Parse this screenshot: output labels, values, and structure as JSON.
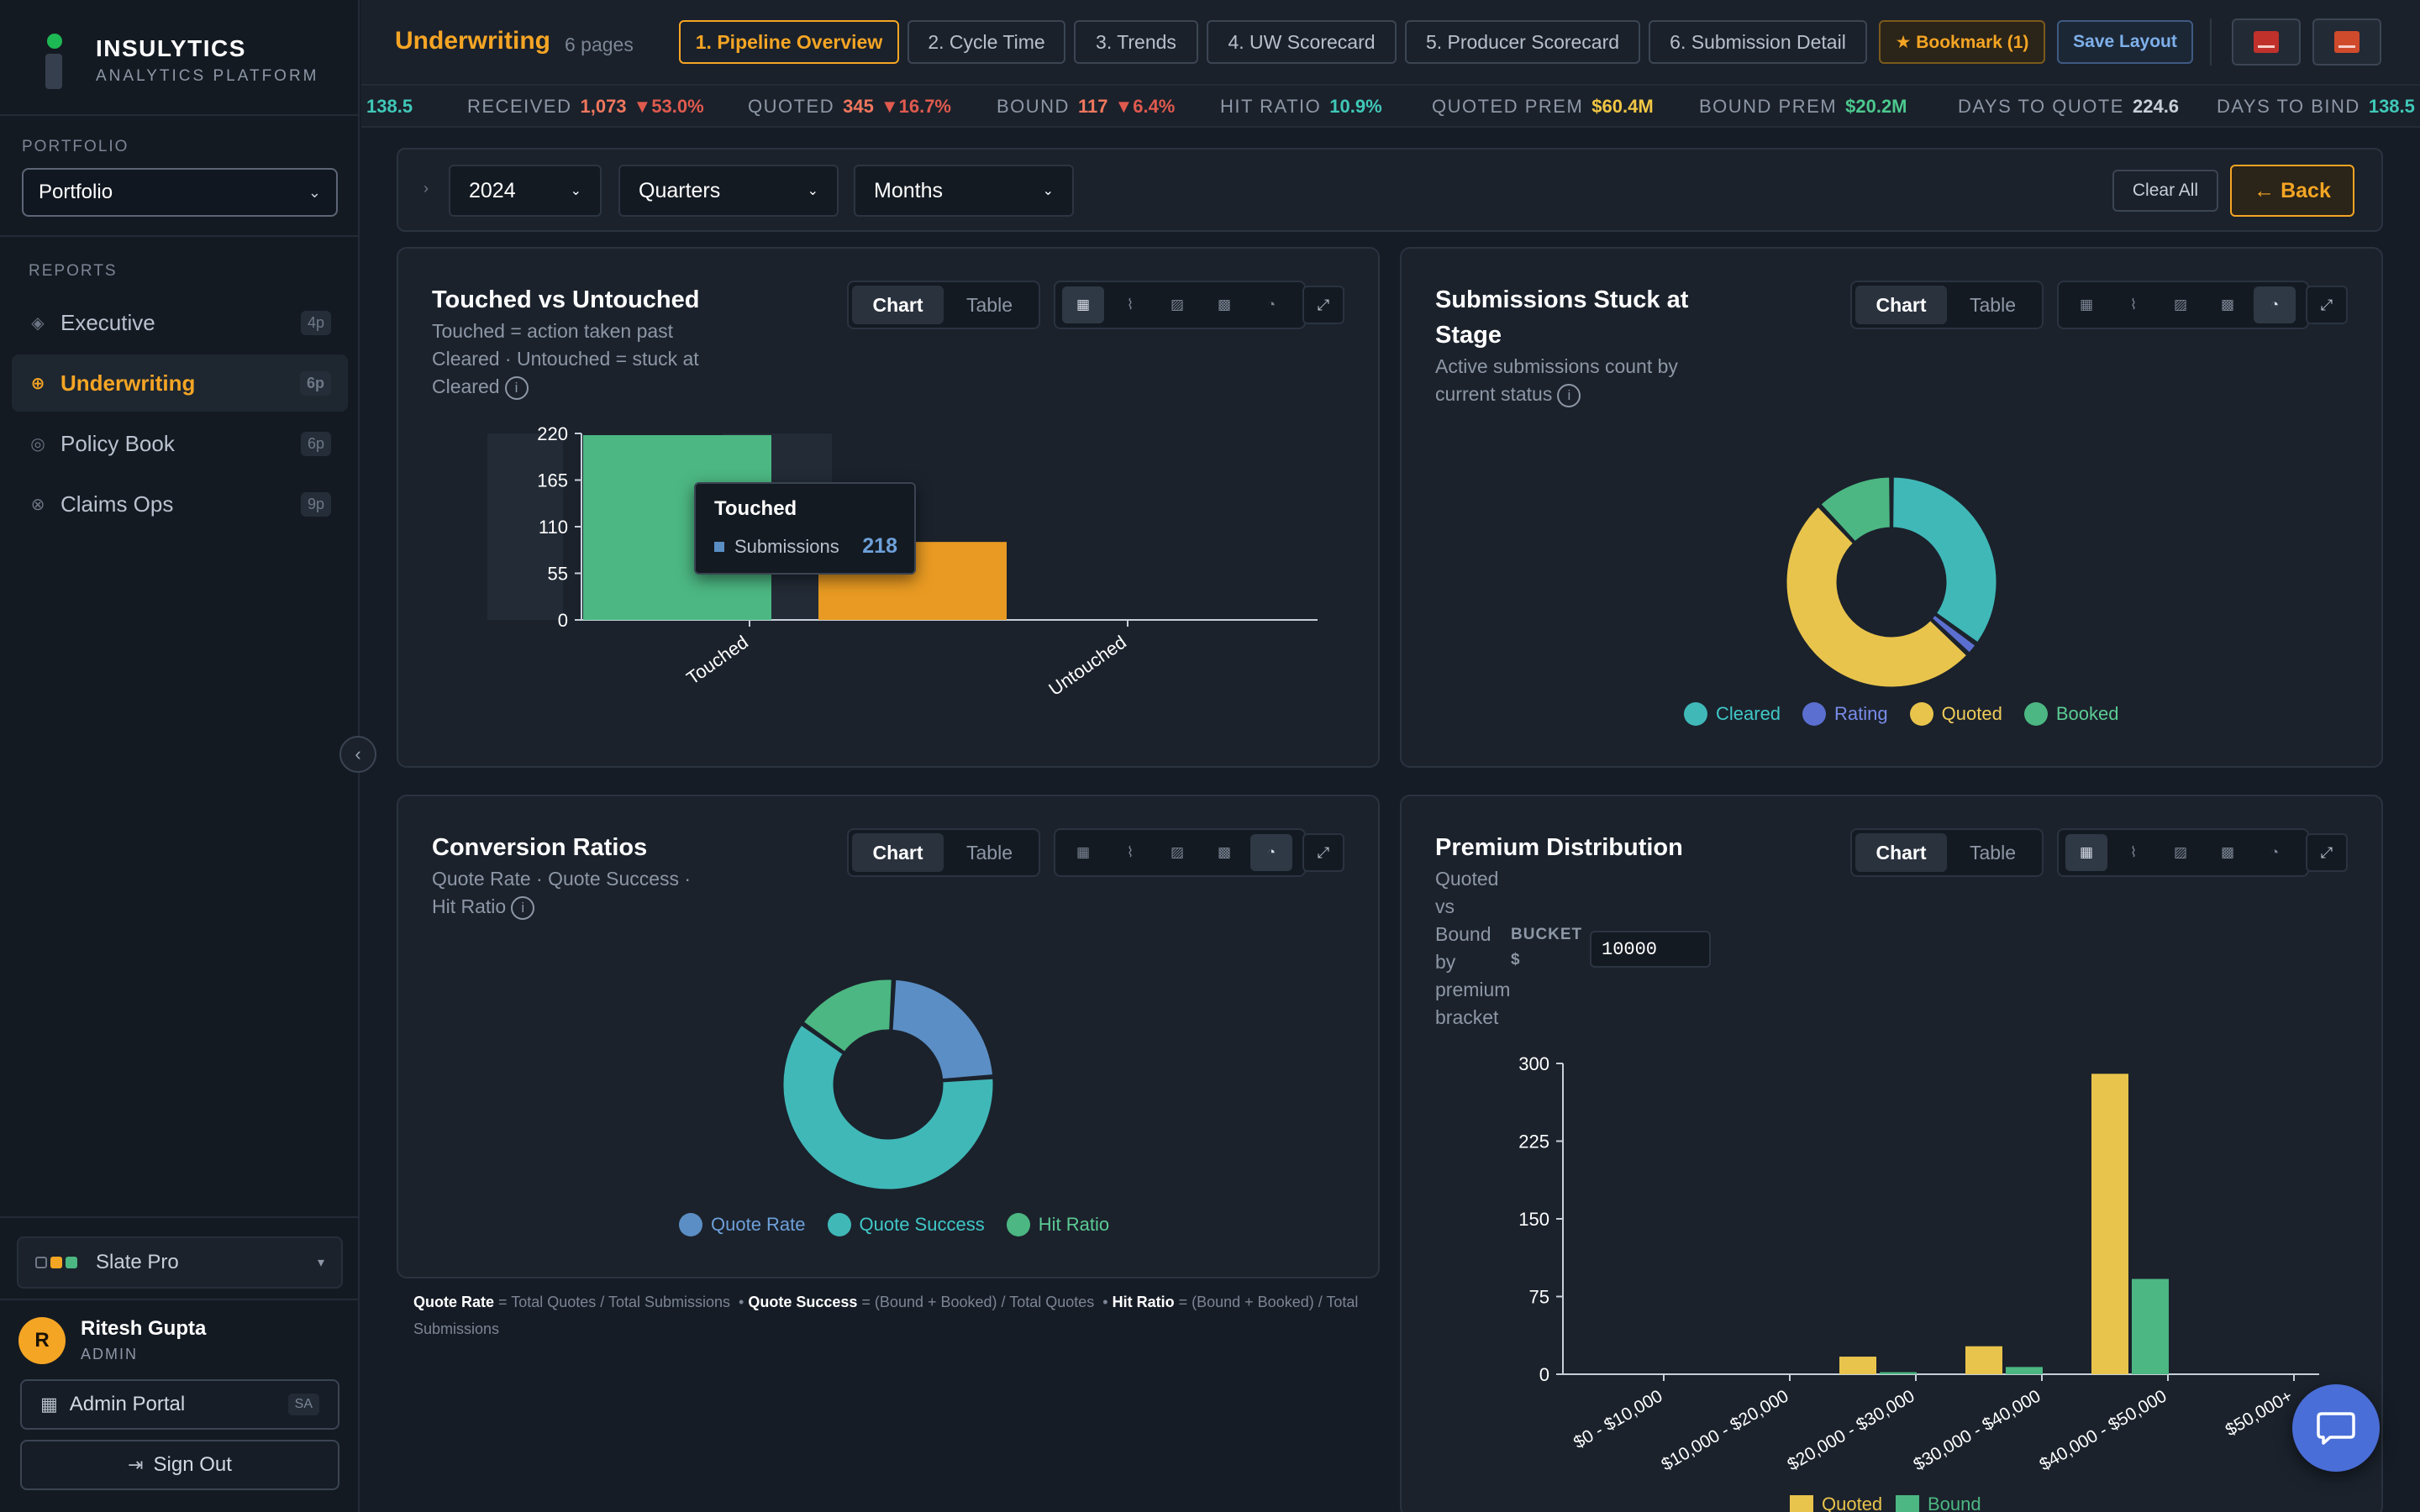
{
  "brand": {
    "name": "INSULYTICS",
    "tagline": "ANALYTICS PLATFORM"
  },
  "sidebar": {
    "portfolio_label": "PORTFOLIO",
    "portfolio_value": "Portfolio",
    "reports_label": "REPORTS",
    "items": [
      {
        "label": "Executive",
        "count": "4p",
        "icon": "diamond-icon"
      },
      {
        "label": "Underwriting",
        "count": "6p",
        "icon": "target-icon"
      },
      {
        "label": "Policy Book",
        "count": "6p",
        "icon": "ring-icon"
      },
      {
        "label": "Claims Ops",
        "count": "9p",
        "icon": "cross-circle-icon"
      }
    ],
    "theme": "Slate Pro",
    "user": {
      "initial": "R",
      "name": "Ritesh Gupta",
      "role": "ADMIN"
    },
    "admin_portal": "Admin Portal",
    "admin_tag": "SA",
    "sign_out": "Sign Out"
  },
  "header": {
    "title": "Underwriting",
    "subtitle": "6 pages",
    "tabs": [
      "1. Pipeline Overview",
      "2. Cycle Time",
      "3. Trends",
      "4. UW Scorecard",
      "5. Producer Scorecard",
      "6. Submission Detail"
    ],
    "bookmark": "★ Bookmark (1)",
    "save_layout": "Save Layout"
  },
  "kpis": {
    "lead_value": "138.5",
    "received": {
      "label": "RECEIVED",
      "value": "1,073",
      "change": "▼53.0%"
    },
    "quoted": {
      "label": "QUOTED",
      "value": "345",
      "change": "▼16.7%"
    },
    "bound": {
      "label": "BOUND",
      "value": "117",
      "change": "▼6.4%"
    },
    "hit_ratio": {
      "label": "HIT RATIO",
      "value": "10.9%"
    },
    "quoted_prem": {
      "label": "QUOTED PREM",
      "value": "$60.4M"
    },
    "bound_prem": {
      "label": "BOUND PREM",
      "value": "$20.2M"
    },
    "days_to_quote": {
      "label": "DAYS TO QUOTE",
      "value": "224.6"
    },
    "days_to_bind": {
      "label": "DAYS TO BIND",
      "value": "138.5"
    }
  },
  "filters": {
    "year": "2024",
    "quarters": "Quarters",
    "months": "Months",
    "clear_all": "Clear All",
    "back": "← Back"
  },
  "controls": {
    "chart": "Chart",
    "table": "Table"
  },
  "colors": {
    "accent": "#f5a524",
    "green": "#4cb782",
    "orange": "#e89a22",
    "teal": "#40b8b8",
    "blue": "#5b8ec4",
    "indigo": "#5b6fd0",
    "yellow": "#e9c44c",
    "negative": "#e05a4e"
  },
  "cards": {
    "touched": {
      "title": "Touched vs Untouched",
      "subtitle_1": "Touched = action taken past",
      "subtitle_2": "Cleared · Untouched = stuck at",
      "subtitle_3": "Cleared",
      "tooltip": {
        "title": "Touched",
        "series": "Submissions",
        "value": "218"
      }
    },
    "stuck": {
      "title_1": "Submissions Stuck at",
      "title_2": "Stage",
      "subtitle_1": "Active submissions count by",
      "subtitle_2": "current status"
    },
    "conversion": {
      "title": "Conversion Ratios",
      "subtitle_1": "Quote Rate · Quote Success ·",
      "subtitle_2": "Hit Ratio"
    },
    "premium": {
      "title": "Premium Distribution",
      "subtitle_lines": [
        "Quoted",
        "vs",
        "Bound",
        "by",
        "premium",
        "bracket"
      ],
      "bucket_label_1": "BUCKET",
      "bucket_label_2": "$",
      "bucket_value": "10000"
    }
  },
  "formula": {
    "quote_rate_label": "Quote Rate",
    "quote_rate_def": "= Total Quotes / Total Submissions",
    "quote_success_label": "Quote Success",
    "quote_success_def": "= (Bound + Booked) / Total Quotes",
    "hit_ratio_label": "Hit Ratio",
    "hit_ratio_def": "= (Bound + Booked) / Total Submissions"
  },
  "chart_data": [
    {
      "type": "bar",
      "categories": [
        "Touched",
        "Untouched"
      ],
      "series": [
        {
          "name": "Submissions",
          "values": [
            218,
            92
          ],
          "colors": [
            "#4cb782",
            "#e89a22"
          ]
        }
      ],
      "yticks": [
        0,
        55,
        110,
        165,
        220
      ],
      "ylim": [
        0,
        220
      ]
    },
    {
      "type": "pie",
      "donut": true,
      "labels": [
        "Cleared",
        "Rating",
        "Quoted",
        "Booked"
      ],
      "values": [
        35,
        2,
        51,
        12
      ],
      "colors": [
        "#40b8b8",
        "#5b6fd0",
        "#e9c44c",
        "#4cb782"
      ],
      "legend": "bottom"
    },
    {
      "type": "pie",
      "donut": true,
      "labels": [
        "Quote Rate",
        "Quote Success",
        "Hit Ratio"
      ],
      "values": [
        23,
        61,
        16
      ],
      "colors": [
        "#5b8ec4",
        "#40b8b8",
        "#4cb782"
      ],
      "legend": "bottom"
    },
    {
      "type": "bar",
      "categories": [
        "$0 - $10,000",
        "$10,000 - $20,000",
        "$20,000 - $30,000",
        "$30,000 - $40,000",
        "$40,000 - $50,000",
        "$50,000+"
      ],
      "series": [
        {
          "name": "Quoted",
          "values": [
            0,
            0,
            17,
            27,
            290,
            0
          ],
          "color": "#e9c44c"
        },
        {
          "name": "Bound",
          "values": [
            0,
            0,
            2,
            7,
            92,
            0
          ],
          "color": "#4cb782"
        }
      ],
      "yticks": [
        0,
        75,
        150,
        225,
        300
      ],
      "ylim": [
        0,
        300
      ],
      "legend": "bottom"
    }
  ]
}
